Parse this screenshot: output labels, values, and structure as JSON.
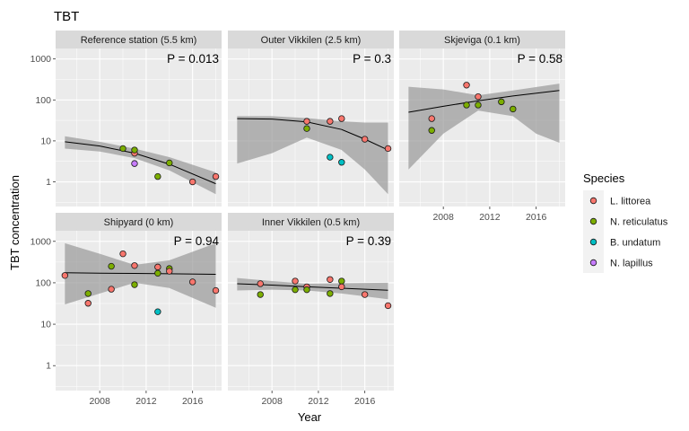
{
  "chart_data": {
    "type": "scatter",
    "title": "TBT",
    "xlabel": "Year",
    "ylabel": "TBT concentration",
    "yscale": "log10",
    "xlim": [
      2004.2,
      2018.5
    ],
    "ylim": [
      0.25,
      1800
    ],
    "x_ticks": [
      2008,
      2012,
      2016
    ],
    "y_ticks": [
      1,
      10,
      100,
      1000
    ],
    "legend": {
      "title": "Species",
      "position": "right",
      "entries": [
        {
          "name": "L. littorea",
          "color": "#F8766D"
        },
        {
          "name": "N. reticulatus",
          "color": "#7CAE00"
        },
        {
          "name": "B. undatum",
          "color": "#00BFC4"
        },
        {
          "name": "N. lapillus",
          "color": "#C77CFF"
        }
      ]
    },
    "panels": [
      {
        "label": "Reference station (5.5 km)",
        "p_value": "P =  0.013",
        "points": [
          {
            "x": 2010,
            "y": 6.5,
            "species": 1
          },
          {
            "x": 2011,
            "y": 5.0,
            "species": 0
          },
          {
            "x": 2011,
            "y": 6.0,
            "species": 1
          },
          {
            "x": 2011,
            "y": 2.8,
            "species": 3
          },
          {
            "x": 2013,
            "y": 1.35,
            "species": 1
          },
          {
            "x": 2014,
            "y": 2.9,
            "species": 1
          },
          {
            "x": 2016,
            "y": 1.0,
            "species": 0
          },
          {
            "x": 2018,
            "y": 1.35,
            "species": 0
          }
        ],
        "fit": [
          [
            2005,
            9.5
          ],
          [
            2008,
            7.5
          ],
          [
            2011,
            5.0
          ],
          [
            2014,
            2.7
          ],
          [
            2018,
            0.9
          ]
        ],
        "band_upper": [
          [
            2005,
            13
          ],
          [
            2008,
            9.5
          ],
          [
            2011,
            6.5
          ],
          [
            2014,
            4.0
          ],
          [
            2018,
            1.7
          ]
        ],
        "band_lower": [
          [
            2005,
            6.5
          ],
          [
            2008,
            5.5
          ],
          [
            2011,
            3.8
          ],
          [
            2014,
            1.9
          ],
          [
            2018,
            0.5
          ]
        ]
      },
      {
        "label": "Outer Vikkilen (2.5 km)",
        "p_value": "P =  0.3",
        "points": [
          {
            "x": 2011,
            "y": 30,
            "species": 0
          },
          {
            "x": 2011,
            "y": 20,
            "species": 1
          },
          {
            "x": 2013,
            "y": 30,
            "species": 0
          },
          {
            "x": 2013,
            "y": 4.0,
            "species": 2
          },
          {
            "x": 2014,
            "y": 35,
            "species": 0
          },
          {
            "x": 2014,
            "y": 3.0,
            "species": 2
          },
          {
            "x": 2016,
            "y": 11,
            "species": 0
          },
          {
            "x": 2018,
            "y": 6.5,
            "species": 0
          }
        ],
        "fit": [
          [
            2005,
            35
          ],
          [
            2008,
            34
          ],
          [
            2011,
            29
          ],
          [
            2014,
            19
          ],
          [
            2016,
            11
          ],
          [
            2018,
            6.0
          ]
        ],
        "band_upper": [
          [
            2005,
            40
          ],
          [
            2008,
            40
          ],
          [
            2011,
            36
          ],
          [
            2014,
            30
          ],
          [
            2016,
            28
          ],
          [
            2018,
            28
          ]
        ],
        "band_lower": [
          [
            2005,
            2.8
          ],
          [
            2008,
            5
          ],
          [
            2011,
            12
          ],
          [
            2014,
            6
          ],
          [
            2016,
            2
          ],
          [
            2018,
            0.5
          ]
        ]
      },
      {
        "label": "Skjeviga (0.1 km)",
        "p_value": "P =  0.58",
        "points": [
          {
            "x": 2007,
            "y": 35,
            "species": 0
          },
          {
            "x": 2007,
            "y": 18,
            "species": 1
          },
          {
            "x": 2010,
            "y": 230,
            "species": 0
          },
          {
            "x": 2010,
            "y": 75,
            "species": 1
          },
          {
            "x": 2011,
            "y": 120,
            "species": 0
          },
          {
            "x": 2011,
            "y": 75,
            "species": 1
          },
          {
            "x": 2013,
            "y": 90,
            "species": 1
          },
          {
            "x": 2014,
            "y": 60,
            "species": 1
          }
        ],
        "fit": [
          [
            2005,
            50
          ],
          [
            2008,
            70
          ],
          [
            2011,
            95
          ],
          [
            2014,
            125
          ],
          [
            2018,
            170
          ]
        ],
        "band_upper": [
          [
            2005,
            210
          ],
          [
            2008,
            180
          ],
          [
            2011,
            130
          ],
          [
            2014,
            170
          ],
          [
            2018,
            250
          ]
        ],
        "band_lower": [
          [
            2005,
            2.0
          ],
          [
            2008,
            15
          ],
          [
            2011,
            55
          ],
          [
            2014,
            40
          ],
          [
            2016,
            15
          ],
          [
            2018,
            9
          ]
        ]
      },
      {
        "label": "Shipyard (0 km)",
        "p_value": "P =  0.94",
        "points": [
          {
            "x": 2005,
            "y": 150,
            "species": 0
          },
          {
            "x": 2007,
            "y": 55,
            "species": 1
          },
          {
            "x": 2007,
            "y": 32,
            "species": 0
          },
          {
            "x": 2009,
            "y": 70,
            "species": 0
          },
          {
            "x": 2009,
            "y": 250,
            "species": 1
          },
          {
            "x": 2010,
            "y": 500,
            "species": 0
          },
          {
            "x": 2011,
            "y": 260,
            "species": 0
          },
          {
            "x": 2011,
            "y": 90,
            "species": 1
          },
          {
            "x": 2013,
            "y": 240,
            "species": 0
          },
          {
            "x": 2013,
            "y": 170,
            "species": 1
          },
          {
            "x": 2013,
            "y": 20,
            "species": 2
          },
          {
            "x": 2014,
            "y": 220,
            "species": 1
          },
          {
            "x": 2014,
            "y": 190,
            "species": 0
          },
          {
            "x": 2016,
            "y": 105,
            "species": 0
          },
          {
            "x": 2018,
            "y": 65,
            "species": 0
          }
        ],
        "fit": [
          [
            2005,
            175
          ],
          [
            2008,
            170
          ],
          [
            2011,
            168
          ],
          [
            2014,
            165
          ],
          [
            2018,
            160
          ]
        ],
        "band_upper": [
          [
            2005,
            900
          ],
          [
            2008,
            500
          ],
          [
            2011,
            270
          ],
          [
            2014,
            350
          ],
          [
            2018,
            900
          ]
        ],
        "band_lower": [
          [
            2005,
            30
          ],
          [
            2008,
            55
          ],
          [
            2011,
            100
          ],
          [
            2014,
            75
          ],
          [
            2018,
            25
          ]
        ]
      },
      {
        "label": "Inner Vikkilen (0.5 km)",
        "p_value": "P =  0.39",
        "points": [
          {
            "x": 2007,
            "y": 95,
            "species": 0
          },
          {
            "x": 2007,
            "y": 52,
            "species": 1
          },
          {
            "x": 2010,
            "y": 110,
            "species": 0
          },
          {
            "x": 2010,
            "y": 68,
            "species": 1
          },
          {
            "x": 2011,
            "y": 80,
            "species": 0
          },
          {
            "x": 2011,
            "y": 68,
            "species": 1
          },
          {
            "x": 2013,
            "y": 120,
            "species": 0
          },
          {
            "x": 2013,
            "y": 55,
            "species": 1
          },
          {
            "x": 2014,
            "y": 110,
            "species": 1
          },
          {
            "x": 2014,
            "y": 80,
            "species": 0
          },
          {
            "x": 2016,
            "y": 52,
            "species": 0
          },
          {
            "x": 2018,
            "y": 28,
            "species": 0
          }
        ],
        "fit": [
          [
            2005,
            95
          ],
          [
            2008,
            88
          ],
          [
            2011,
            80
          ],
          [
            2014,
            74
          ],
          [
            2018,
            66
          ]
        ],
        "band_upper": [
          [
            2005,
            130
          ],
          [
            2008,
            110
          ],
          [
            2011,
            95
          ],
          [
            2014,
            98
          ],
          [
            2018,
            100
          ]
        ],
        "band_lower": [
          [
            2005,
            65
          ],
          [
            2008,
            68
          ],
          [
            2011,
            65
          ],
          [
            2014,
            55
          ],
          [
            2018,
            40
          ]
        ]
      }
    ]
  }
}
